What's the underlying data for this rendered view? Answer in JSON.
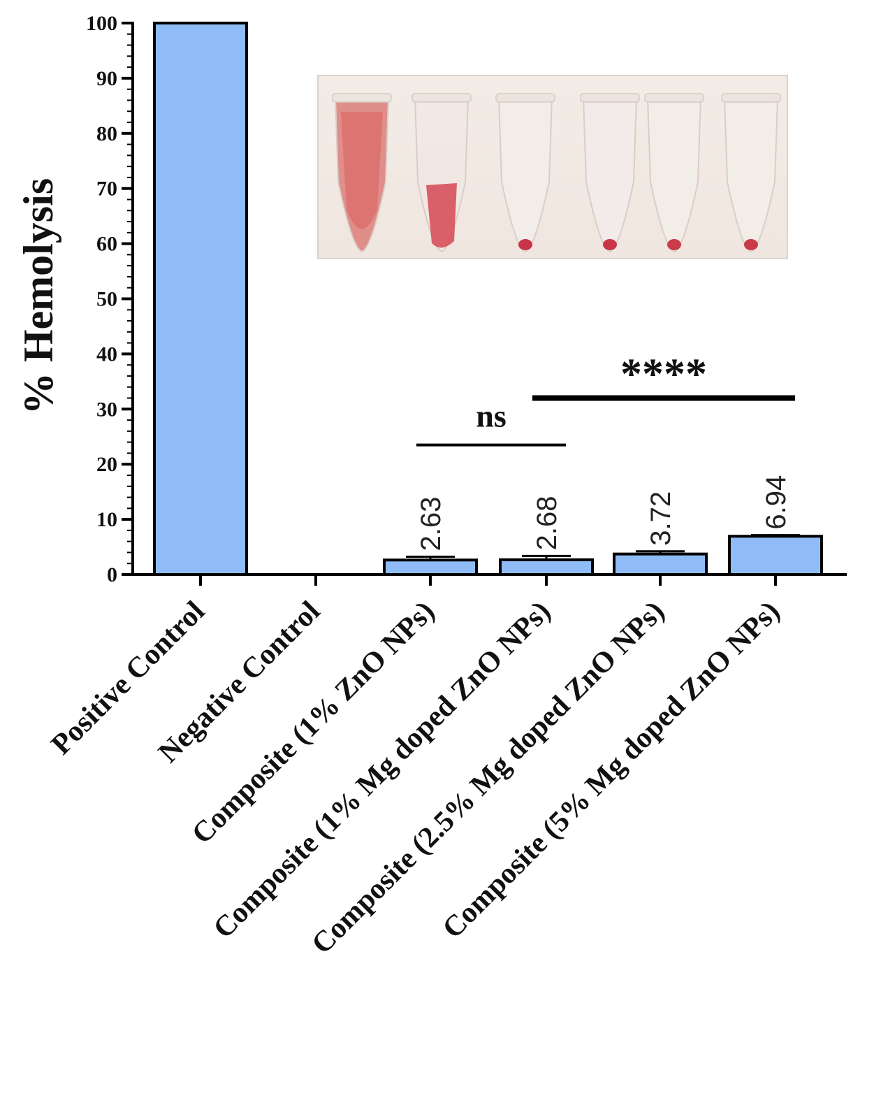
{
  "chart_data": {
    "type": "bar",
    "title": "",
    "xlabel": "",
    "ylabel": "% Hemolysis",
    "ylim": [
      0,
      100
    ],
    "yticks": [
      0,
      10,
      20,
      30,
      40,
      50,
      60,
      70,
      80,
      90,
      100
    ],
    "categories": [
      "Positive Control",
      "Negative Control",
      "Composite (1% ZnO NPs)",
      "Composite (1% Mg doped ZnO NPs)",
      "Composite (2.5% Mg doped ZnO NPs)",
      "Composite (5% Mg doped ZnO NPs)"
    ],
    "values": [
      100,
      0,
      2.63,
      2.68,
      3.72,
      6.94
    ],
    "errors": [
      0,
      0,
      0.6,
      0.7,
      0.5,
      0.2
    ],
    "data_labels": [
      "",
      "",
      "2.63",
      "2.68",
      "3.72",
      "6.94"
    ],
    "bar_color": "#8fbcf7",
    "significance": [
      {
        "label": "ns",
        "from_index": 2,
        "to_index": 3,
        "y": 23.5
      },
      {
        "label": "****",
        "from_index": 3,
        "to_index": 5,
        "y": 32
      }
    ]
  },
  "inset": {
    "tube_count": 6,
    "tube_colors": [
      "#e08a86",
      "#f3e8e4",
      "#f3eeea",
      "#f3ecea",
      "#f4eee8",
      "#f4eee8"
    ],
    "pellet_colors": [
      "#d9605e",
      "#d6505c",
      "#c9344a",
      "#c93449",
      "#cc3b49",
      "#c93b49"
    ]
  }
}
